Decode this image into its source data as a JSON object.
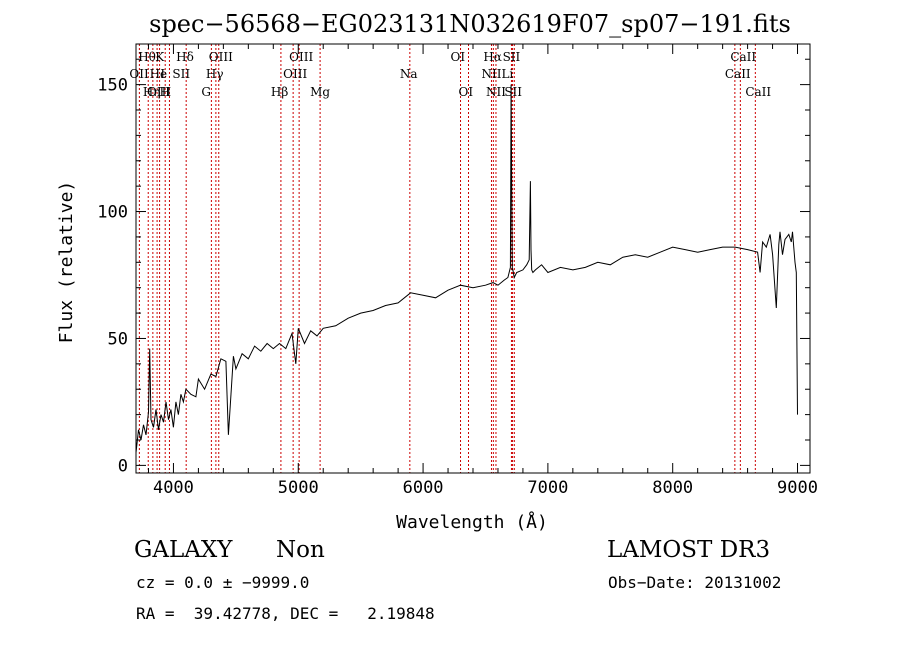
{
  "chart_data": {
    "type": "line",
    "title": "spec−56568−EG023131N032619F07_sp07−191.fits",
    "xlabel": "Wavelength (Å)",
    "ylabel": "Flux (relative)",
    "xlim": [
      3700,
      9100
    ],
    "ylim": [
      -3,
      166
    ],
    "xticks": [
      4000,
      5000,
      6000,
      7000,
      8000,
      9000
    ],
    "yticks": [
      0,
      50,
      100,
      150
    ],
    "line_color": "#000000",
    "marker_color": "#cc0000",
    "series": [
      {
        "x": [
          3700,
          3720,
          3740,
          3760,
          3780,
          3800,
          3810,
          3820,
          3840,
          3860,
          3880,
          3900,
          3920,
          3940,
          3960,
          3980,
          4000,
          4020,
          4040,
          4060,
          4080,
          4100,
          4140,
          4180,
          4200,
          4250,
          4300,
          4340,
          4380,
          4420,
          4440,
          4480,
          4500,
          4550,
          4600,
          4650,
          4700,
          4750,
          4800,
          4850,
          4900,
          4950,
          4980,
          5000,
          5050,
          5100,
          5150,
          5200,
          5300,
          5400,
          5500,
          5600,
          5700,
          5800,
          5900,
          6000,
          6100,
          6200,
          6300,
          6400,
          6500,
          6560,
          6600,
          6650,
          6680,
          6700,
          6705,
          6710,
          6715,
          6720,
          6730,
          6750,
          6800,
          6830,
          6850,
          6860,
          6865,
          6870,
          6880,
          6900,
          6950,
          7000,
          7100,
          7200,
          7300,
          7400,
          7500,
          7600,
          7700,
          7800,
          7900,
          8000,
          8100,
          8200,
          8300,
          8400,
          8500,
          8600,
          8680,
          8700,
          8720,
          8750,
          8780,
          8800,
          8830,
          8850,
          8860,
          8880,
          8900,
          8930,
          8950,
          8960,
          8980,
          8990,
          9000
        ],
        "y": [
          5,
          14,
          10,
          16,
          12,
          21,
          46,
          18,
          15,
          22,
          14,
          20,
          17,
          25,
          18,
          22,
          15,
          25,
          20,
          28,
          25,
          30,
          28,
          27,
          34,
          30,
          36,
          35,
          42,
          41,
          12,
          43,
          38,
          44,
          42,
          47,
          45,
          48,
          46,
          48,
          46,
          52,
          40,
          54,
          48,
          53,
          51,
          54,
          55,
          58,
          60,
          61,
          63,
          64,
          68,
          67,
          66,
          69,
          71,
          70,
          71,
          72,
          71,
          73,
          74,
          78,
          150,
          110,
          77,
          77,
          74,
          76,
          77,
          79,
          81,
          112,
          85,
          77,
          76,
          77,
          79,
          76,
          78,
          77,
          78,
          80,
          79,
          82,
          83,
          82,
          84,
          86,
          85,
          84,
          85,
          86,
          86,
          85,
          84,
          76,
          88,
          86,
          91,
          83,
          62,
          87,
          92,
          83,
          89,
          91,
          88,
          92,
          80,
          76,
          20
        ]
      }
    ],
    "spectral_lines": [
      {
        "label": "OII",
        "x": 3727,
        "row": 2
      },
      {
        "label": "Hθ",
        "x": 3798,
        "row": 1
      },
      {
        "label": "OIII",
        "x": 3869,
        "row": 3
      },
      {
        "label": "He",
        "x": 3889,
        "row": 2
      },
      {
        "label": "Hη",
        "x": 3835,
        "row": 3
      },
      {
        "label": "K",
        "x": 3934,
        "row": 1
      },
      {
        "label": "H",
        "x": 3968,
        "row": 3
      },
      {
        "label": "I",
        "x": 3975,
        "row": 2
      },
      {
        "label": "Hδ",
        "x": 4102,
        "row": 1
      },
      {
        "label": "SII",
        "x": 4072,
        "row": 2
      },
      {
        "label": "OIII",
        "x": 4363,
        "row": 1
      },
      {
        "label": "Hγ",
        "x": 4340,
        "row": 2
      },
      {
        "label": "G",
        "x": 4304,
        "row": 3
      },
      {
        "label": "OIII",
        "x": 5007,
        "row": 1
      },
      {
        "label": "OIII",
        "x": 4959,
        "row": 2
      },
      {
        "label": "Hβ",
        "x": 4861,
        "row": 3
      },
      {
        "label": "Mg",
        "x": 5175,
        "row": 3
      },
      {
        "label": "Na",
        "x": 5894,
        "row": 2
      },
      {
        "label": "OI",
        "x": 6300,
        "row": 1
      },
      {
        "label": "OI",
        "x": 6364,
        "row": 3
      },
      {
        "label": "Hα",
        "x": 6563,
        "row": 1
      },
      {
        "label": "NII",
        "x": 6548,
        "row": 2
      },
      {
        "label": "NII",
        "x": 6584,
        "row": 3
      },
      {
        "label": "SII",
        "x": 6717,
        "row": 1
      },
      {
        "label": "Li",
        "x": 6708,
        "row": 2
      },
      {
        "label": "SII",
        "x": 6731,
        "row": 3
      },
      {
        "label": "CaII",
        "x": 8542,
        "row": 1
      },
      {
        "label": "CaII",
        "x": 8498,
        "row": 2
      },
      {
        "label": "CaII",
        "x": 8662,
        "row": 3
      }
    ],
    "marker_lines_x": [
      3727,
      3798,
      3835,
      3869,
      3889,
      3934,
      3968,
      4102,
      4304,
      4340,
      4363,
      4861,
      4959,
      5007,
      5175,
      5894,
      6300,
      6364,
      6548,
      6563,
      6584,
      6708,
      6717,
      6731,
      8498,
      8542,
      8662
    ]
  },
  "info": {
    "object_class": "GALAXY",
    "subclass": "Non",
    "survey": "LAMOST DR3",
    "cz_line": "cz = 0.0 ± −9999.0",
    "obs_date_line": "Obs−Date: 20131002",
    "radec_line": "RA =  39.42778, DEC =   2.19848"
  }
}
